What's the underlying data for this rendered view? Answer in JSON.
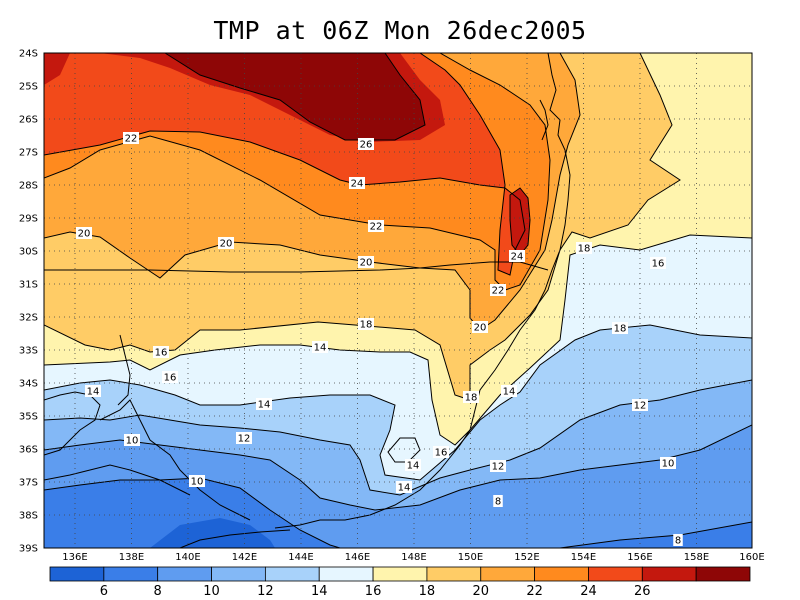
{
  "title": "TMP at 06Z Mon 26dec2005",
  "lat_labels": [
    "24S",
    "25S",
    "26S",
    "27S",
    "28S",
    "29S",
    "30S",
    "31S",
    "32S",
    "33S",
    "34S",
    "35S",
    "36S",
    "37S",
    "38S",
    "39S"
  ],
  "lon_labels": [
    "136E",
    "138E",
    "140E",
    "142E",
    "144E",
    "146E",
    "148E",
    "150E",
    "152E",
    "154E",
    "156E",
    "158E",
    "160E"
  ],
  "colorbar": {
    "colors": [
      "#1d63d6",
      "#3a7ee8",
      "#5f9cf0",
      "#83b8f6",
      "#a8d2fa",
      "#e6f6ff",
      "#fff4ad",
      "#ffcc66",
      "#ffa83a",
      "#ff8a1e",
      "#f24a1a",
      "#c4180e",
      "#8e0606"
    ],
    "labels": [
      "6",
      "8",
      "10",
      "12",
      "14",
      "16",
      "18",
      "20",
      "22",
      "24",
      "26"
    ]
  },
  "contour_labels": [
    {
      "text": "22"
    },
    {
      "text": "26"
    },
    {
      "text": "24"
    },
    {
      "text": "22"
    },
    {
      "text": "20"
    },
    {
      "text": "20"
    },
    {
      "text": "20"
    },
    {
      "text": "24"
    },
    {
      "text": "22"
    },
    {
      "text": "18"
    },
    {
      "text": "16"
    },
    {
      "text": "20"
    },
    {
      "text": "18"
    },
    {
      "text": "16"
    },
    {
      "text": "14"
    },
    {
      "text": "18"
    },
    {
      "text": "16"
    },
    {
      "text": "14"
    },
    {
      "text": "14"
    },
    {
      "text": "18"
    },
    {
      "text": "14"
    },
    {
      "text": "12"
    },
    {
      "text": "16"
    },
    {
      "text": "14"
    },
    {
      "text": "10"
    },
    {
      "text": "12"
    },
    {
      "text": "12"
    },
    {
      "text": "14"
    },
    {
      "text": "10"
    },
    {
      "text": "8"
    },
    {
      "text": "10"
    },
    {
      "text": "8"
    }
  ]
}
